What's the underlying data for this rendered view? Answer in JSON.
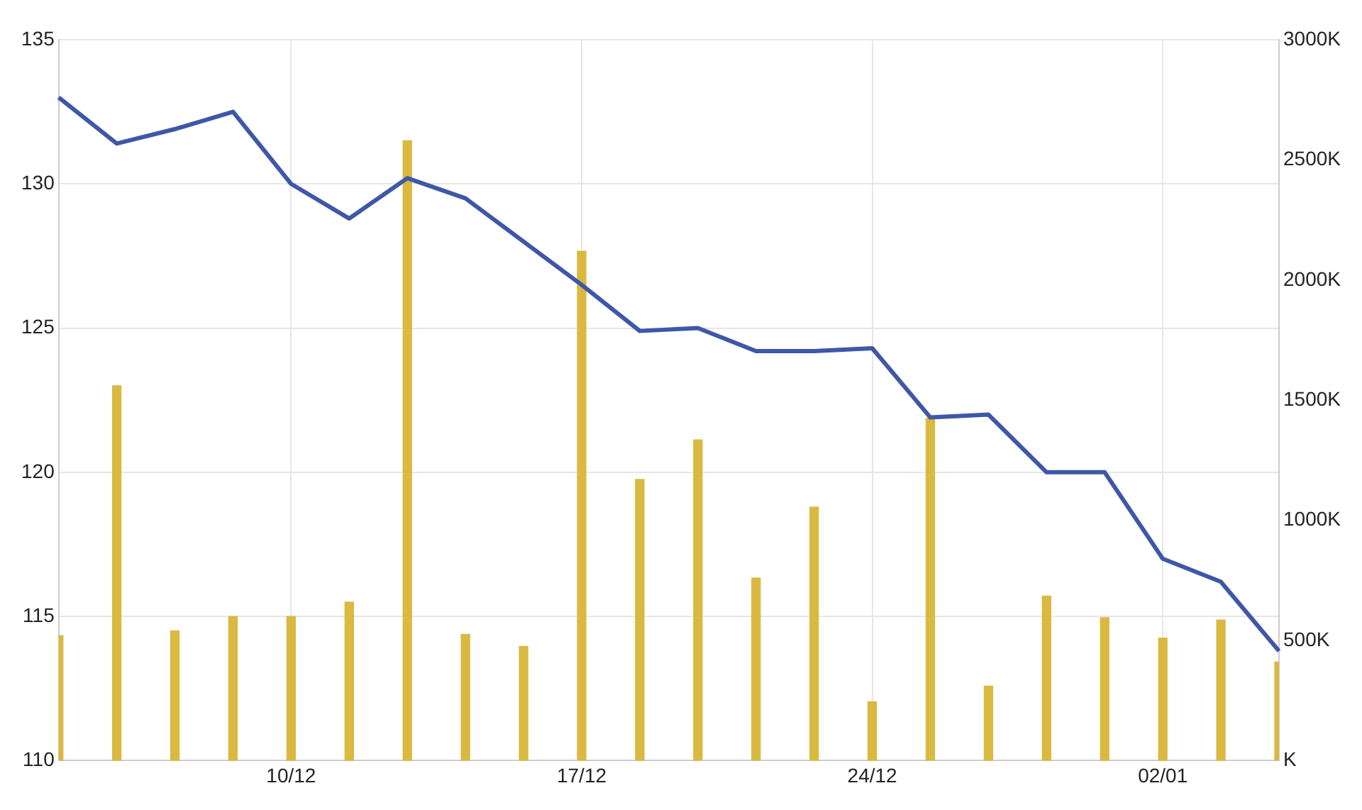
{
  "chart_data": {
    "type": "bar",
    "categories": [
      null,
      null,
      null,
      null,
      "10/12",
      null,
      null,
      null,
      null,
      "17/12",
      null,
      null,
      null,
      null,
      "24/12",
      null,
      null,
      null,
      null,
      "02/01",
      null,
      null
    ],
    "series": [
      {
        "type": "line",
        "color": "#3f57a8",
        "values": [
          133.0,
          131.4,
          131.9,
          132.5,
          130.0,
          128.8,
          130.2,
          129.5,
          128.0,
          126.5,
          124.9,
          125.0,
          124.2,
          124.2,
          124.3,
          121.9,
          122.0,
          120.0,
          120.0,
          117.0,
          116.2,
          113.8
        ]
      },
      {
        "axis": "y2",
        "color": "#d9b940",
        "values": [
          520,
          1560,
          540,
          600,
          600,
          660,
          2580,
          525,
          475,
          2120,
          1170,
          1335,
          760,
          1055,
          245,
          1425,
          310,
          685,
          595,
          510,
          585,
          410
        ]
      }
    ],
    "ylim": [
      110,
      135
    ],
    "yticks": [
      110,
      115,
      120,
      125,
      130,
      135
    ],
    "y2lim": [
      0,
      3000
    ],
    "y2ticks": [
      {
        "value": 0,
        "label": "K"
      },
      {
        "value": 500,
        "label": "500K"
      },
      {
        "value": 1000,
        "label": "1000K"
      },
      {
        "value": 1500,
        "label": "1500K"
      },
      {
        "value": 2000,
        "label": "2000K"
      },
      {
        "value": 2500,
        "label": "2500K"
      },
      {
        "value": 3000,
        "label": "3000K"
      }
    ],
    "grid": true,
    "legend": false,
    "marker": "none",
    "line_style": "solid"
  }
}
